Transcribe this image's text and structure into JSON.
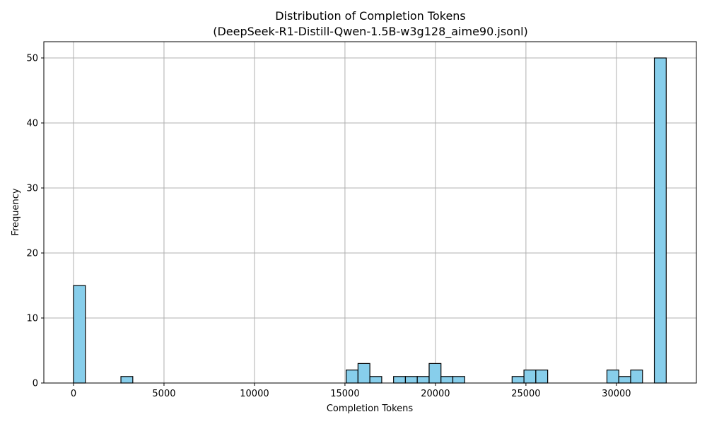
{
  "chart_data": {
    "type": "bar",
    "title": "Distribution of Completion Tokens",
    "subtitle": "(DeepSeek-R1-Distill-Qwen-1.5B-w3g128_aime90.jsonl)",
    "xlabel": "Completion Tokens",
    "ylabel": "Frequency",
    "xlim": [
      -1640,
      34420
    ],
    "ylim": [
      0,
      52.5
    ],
    "xticks": [
      0,
      5000,
      10000,
      15000,
      20000,
      25000,
      30000
    ],
    "yticks": [
      0,
      10,
      20,
      30,
      40,
      50
    ],
    "grid": true,
    "bin_width": 655,
    "bins": [
      {
        "start": 0,
        "count": 15
      },
      {
        "start": 2620,
        "count": 1
      },
      {
        "start": 15066,
        "count": 2
      },
      {
        "start": 15721,
        "count": 3
      },
      {
        "start": 16376,
        "count": 1
      },
      {
        "start": 17686,
        "count": 1
      },
      {
        "start": 18341,
        "count": 1
      },
      {
        "start": 18996,
        "count": 1
      },
      {
        "start": 19651,
        "count": 3
      },
      {
        "start": 20306,
        "count": 1
      },
      {
        "start": 20961,
        "count": 1
      },
      {
        "start": 24236,
        "count": 1
      },
      {
        "start": 24891,
        "count": 2
      },
      {
        "start": 25546,
        "count": 2
      },
      {
        "start": 29477,
        "count": 2
      },
      {
        "start": 30132,
        "count": 1
      },
      {
        "start": 30787,
        "count": 2
      },
      {
        "start": 32097,
        "count": 50
      }
    ],
    "colors": {
      "bar_fill": "#87ceeb",
      "bar_edge": "#000000",
      "grid": "#b0b0b0"
    }
  }
}
